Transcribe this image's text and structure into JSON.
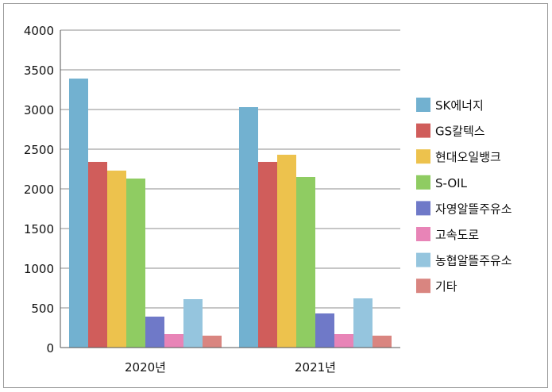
{
  "chart_data": {
    "type": "bar",
    "categories": [
      "2020년",
      "2021년"
    ],
    "series": [
      {
        "name": "SK에너지",
        "color": "#72b1d0",
        "values": [
          3390,
          3030
        ]
      },
      {
        "name": "GS칼텍스",
        "color": "#d05d5b",
        "values": [
          2340,
          2340
        ]
      },
      {
        "name": "현대오일뱅크",
        "color": "#edc24d",
        "values": [
          2230,
          2430
        ]
      },
      {
        "name": "S-OIL",
        "color": "#8fcc62",
        "values": [
          2130,
          2150
        ]
      },
      {
        "name": "자영알뜰주유소",
        "color": "#6f79c8",
        "values": [
          390,
          430
        ]
      },
      {
        "name": "고속도로",
        "color": "#e884b7",
        "values": [
          170,
          170
        ]
      },
      {
        "name": "농협알뜰주유소",
        "color": "#95c5de",
        "values": [
          610,
          620
        ]
      },
      {
        "name": "기타",
        "color": "#d98580",
        "values": [
          150,
          150
        ]
      }
    ],
    "ylim": [
      0,
      4000
    ],
    "yticks": [
      0,
      500,
      1000,
      1500,
      2000,
      2500,
      3000,
      3500,
      4000
    ],
    "grid": true,
    "legend": "right"
  }
}
